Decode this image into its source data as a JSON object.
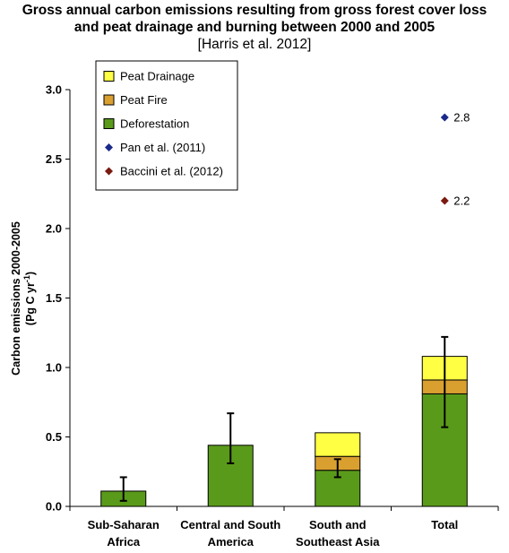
{
  "chart_data": {
    "type": "bar",
    "stacked": true,
    "title": "Gross annual carbon emissions resulting from gross forest cover loss",
    "title_line2": "and peat drainage and burning between 2000 and 2005",
    "subtitle": "[Harris et al. 2012]",
    "ylabel": "Carbon emissions 2000-2005",
    "ylabel_unit_prefix": "(Pg C yr",
    "ylabel_unit_sup": "-1",
    "ylabel_unit_suffix": ")",
    "ylim": [
      0,
      3.0
    ],
    "yticks": [
      "0.0",
      "0.5",
      "1.0",
      "1.5",
      "2.0",
      "2.5",
      "3.0"
    ],
    "ytick_values": [
      0,
      0.5,
      1.0,
      1.5,
      2.0,
      2.5,
      3.0
    ],
    "categories": [
      [
        "Sub-Saharan",
        "Africa"
      ],
      [
        "Central and South",
        "America"
      ],
      [
        "South and",
        "Southeast Asia"
      ],
      [
        "Total"
      ]
    ],
    "series": [
      {
        "name": "Deforestation",
        "color": "#5a9a1a",
        "values": [
          0.11,
          0.44,
          0.26,
          0.81
        ]
      },
      {
        "name": "Peat Fire",
        "color": "#d9a030",
        "values": [
          0,
          0,
          0.1,
          0.1
        ]
      },
      {
        "name": "Peat Drainage",
        "color": "#ffff44",
        "values": [
          0,
          0,
          0.17,
          0.17
        ]
      }
    ],
    "error_bars": [
      {
        "category": 0,
        "center": 0.11,
        "low": 0.04,
        "high": 0.21
      },
      {
        "category": 1,
        "center": 0.44,
        "low": 0.31,
        "high": 0.67
      },
      {
        "category": 2,
        "center": 0.26,
        "low": 0.21,
        "high": 0.34
      },
      {
        "category": 3,
        "center": 0.81,
        "low": 0.57,
        "high": 1.22
      }
    ],
    "points": [
      {
        "name": "Pan et al. (2011)",
        "category": 3,
        "value": 2.8,
        "label": "2.8",
        "color": "#1a2a8a"
      },
      {
        "name": "Baccini et al. (2012)",
        "category": 3,
        "value": 2.2,
        "label": "2.2",
        "color": "#7a1a10"
      }
    ],
    "legend": {
      "placement": "top-left",
      "entries": [
        {
          "name": "Peat Drainage",
          "marker": "square",
          "color": "#ffff44"
        },
        {
          "name": "Peat Fire",
          "marker": "square",
          "color": "#d9a030"
        },
        {
          "name": "Deforestation",
          "marker": "square",
          "color": "#5a9a1a"
        },
        {
          "name": "Pan et al. (2011)",
          "marker": "diamond",
          "color": "#1a2a8a"
        },
        {
          "name": "Baccini et al. (2012)",
          "marker": "diamond",
          "color": "#7a1a10"
        }
      ]
    },
    "grid": false
  }
}
